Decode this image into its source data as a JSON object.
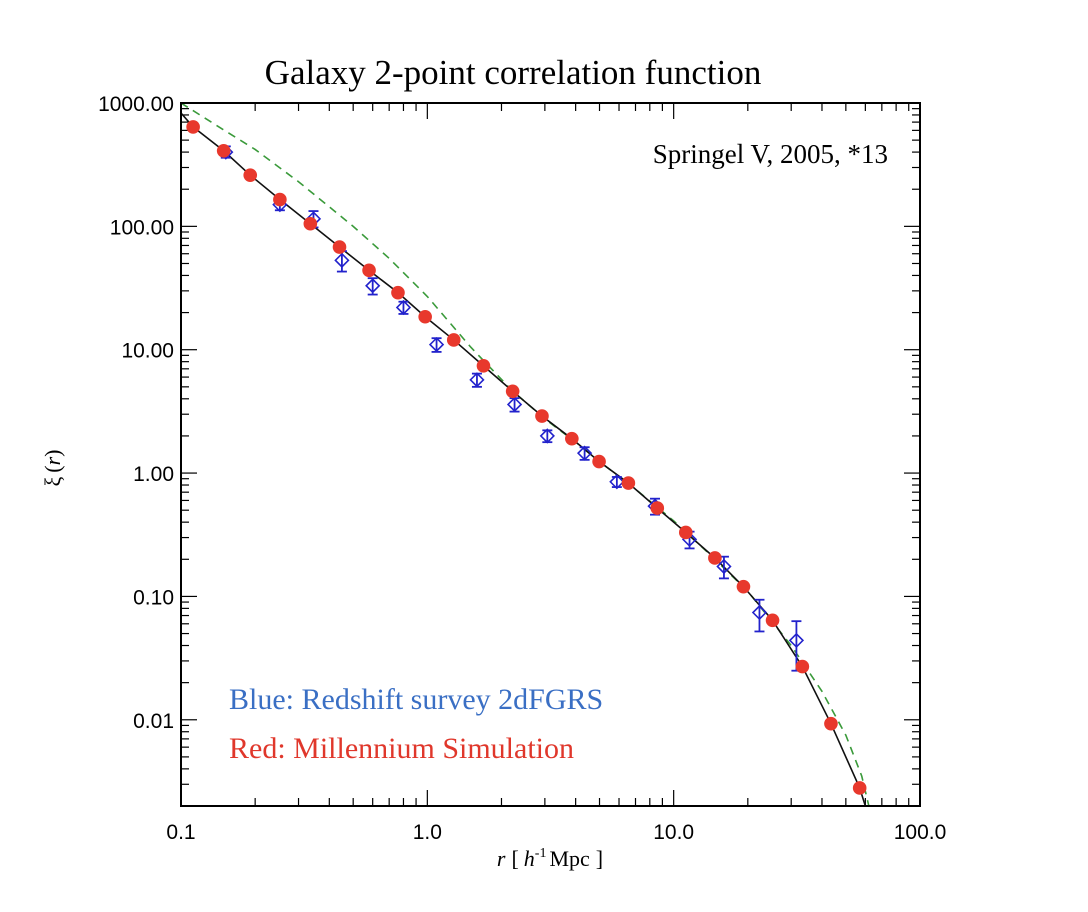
{
  "chart_data": {
    "type": "scatter",
    "title": "Galaxy 2-point correlation function",
    "annotation": "Springel V, 2005, *13",
    "xlabel": {
      "italic_r": "r",
      "open_bracket": "[",
      "italic_h": "h",
      "superscript": "-1",
      "unit": "Mpc",
      "close_bracket": "]"
    },
    "ylabel": {
      "xi": "ξ",
      "open_paren": "(",
      "italic_r": "r",
      "close_paren": ")"
    },
    "xscale": "log",
    "yscale": "log",
    "xlim": [
      0.1,
      100
    ],
    "ylim": [
      0.002,
      1000
    ],
    "x_ticks": [
      {
        "value": 0.1,
        "label": "0.1"
      },
      {
        "value": 1,
        "label": "1.0"
      },
      {
        "value": 10,
        "label": "10.0"
      },
      {
        "value": 100,
        "label": "100.0"
      }
    ],
    "y_ticks": [
      {
        "value": 1000,
        "label": "1000.00"
      },
      {
        "value": 100,
        "label": "100.00"
      },
      {
        "value": 10,
        "label": "10.00"
      },
      {
        "value": 1,
        "label": "1.00"
      },
      {
        "value": 0.1,
        "label": "0.10"
      },
      {
        "value": 0.01,
        "label": "0.01"
      }
    ],
    "legend": [
      {
        "text": "Blue: Redshift survey 2dFGRS",
        "color": "#3a6fc4"
      },
      {
        "text": "Red: Millennium Simulation",
        "color": "#e0372b"
      }
    ],
    "series": [
      {
        "name": "Millennium Simulation",
        "marker": "filled-circle",
        "color": "#e8382c",
        "x": [
          0.112,
          0.149,
          0.191,
          0.252,
          0.335,
          0.44,
          0.58,
          0.76,
          0.98,
          1.28,
          1.69,
          2.22,
          2.92,
          3.86,
          4.98,
          6.55,
          8.58,
          11.2,
          14.7,
          19.2,
          25.2,
          33.3,
          43.5,
          56.9
        ],
        "y": [
          640,
          410,
          260,
          165,
          105,
          68,
          44,
          29,
          18.5,
          12,
          7.4,
          4.6,
          2.9,
          1.9,
          1.24,
          0.83,
          0.52,
          0.33,
          0.205,
          0.12,
          0.064,
          0.027,
          0.0093,
          0.0028
        ]
      },
      {
        "name": "Redshift survey 2dFGRS",
        "marker": "open-diamond-errorbar",
        "color": "#2222cc",
        "x": [
          0.152,
          0.252,
          0.345,
          0.45,
          0.6,
          0.8,
          1.09,
          1.59,
          2.26,
          3.07,
          4.35,
          5.88,
          8.4,
          11.6,
          16.0,
          22.3,
          31.5
        ],
        "y": [
          400,
          150,
          115,
          53,
          33,
          22,
          11,
          5.7,
          3.6,
          2.0,
          1.45,
          0.85,
          0.54,
          0.29,
          0.175,
          0.074,
          0.044
        ],
        "yerr_low": [
          360,
          135,
          98,
          43,
          28,
          19.5,
          9.6,
          5.0,
          3.15,
          1.78,
          1.28,
          0.77,
          0.46,
          0.245,
          0.14,
          0.052,
          0.025
        ],
        "yerr_high": [
          445,
          165,
          133,
          63,
          38,
          24.5,
          12.4,
          6.4,
          4.05,
          2.22,
          1.62,
          0.93,
          0.62,
          0.335,
          0.21,
          0.094,
          0.063
        ]
      },
      {
        "name": "Black model curve",
        "style": "solid",
        "color": "#111111",
        "x": [
          0.1,
          0.112,
          0.149,
          0.191,
          0.252,
          0.335,
          0.44,
          0.58,
          0.76,
          0.98,
          1.28,
          1.69,
          2.22,
          2.92,
          3.86,
          4.98,
          6.55,
          8.58,
          11.2,
          14.7,
          19.2,
          25.2,
          33.3,
          43.5,
          56.9,
          60
        ],
        "y": [
          830,
          640,
          410,
          260,
          165,
          105,
          68,
          44,
          29,
          18.5,
          12,
          7.4,
          4.6,
          2.9,
          1.9,
          1.24,
          0.83,
          0.52,
          0.33,
          0.205,
          0.12,
          0.064,
          0.027,
          0.0093,
          0.0028,
          0.002
        ]
      },
      {
        "name": "Green dashed curve",
        "style": "dashed",
        "color": "#3a9a3a",
        "x": [
          0.1,
          0.15,
          0.2,
          0.3,
          0.5,
          0.7,
          1.0,
          1.5,
          2.2,
          3.0,
          4.0,
          5.0,
          7.0,
          10,
          14,
          20,
          30,
          40,
          50,
          58,
          62
        ],
        "y": [
          1000,
          600,
          420,
          230,
          100,
          55,
          27,
          10.5,
          4.7,
          2.75,
          1.78,
          1.24,
          0.74,
          0.41,
          0.22,
          0.11,
          0.04,
          0.017,
          0.0075,
          0.0035,
          0.002
        ]
      }
    ]
  }
}
